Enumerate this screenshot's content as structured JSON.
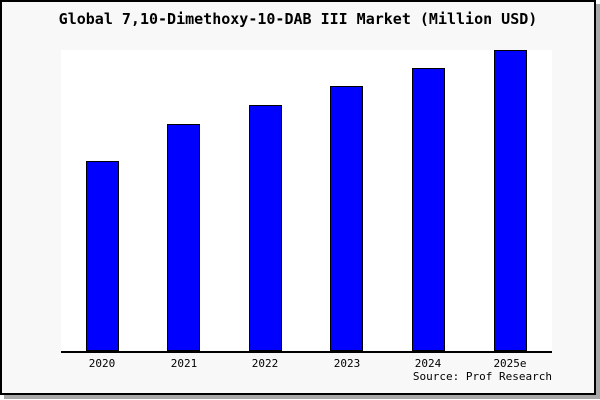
{
  "window": {
    "background": "#ffffff",
    "card_background": "#f8f8f8",
    "card_border_color": "#000000",
    "card_shadow_color": "#a8a8a8"
  },
  "source_credit": "Source: Prof Research",
  "chart_data": {
    "type": "bar",
    "title": "Global 7,10-Dimethoxy-10-DAB III Market (Million USD)",
    "categories": [
      "2020",
      "2021",
      "2022",
      "2023",
      "2024",
      "2025e"
    ],
    "values": [
      63.1,
      75.4,
      81.7,
      88.0,
      94.0,
      100.0
    ],
    "values_note": "No y-axis scale is shown in the image; values are relative bar heights normalized so the tallest bar (2025e) = 100.",
    "xlabel": "",
    "ylabel": "",
    "ylim": [
      0,
      100
    ],
    "grid": false,
    "legend": null,
    "bar_color": "#0000ff",
    "bar_edge_color": "#000000",
    "plot_background": "#ffffff",
    "axis_line_color": "#000000"
  }
}
